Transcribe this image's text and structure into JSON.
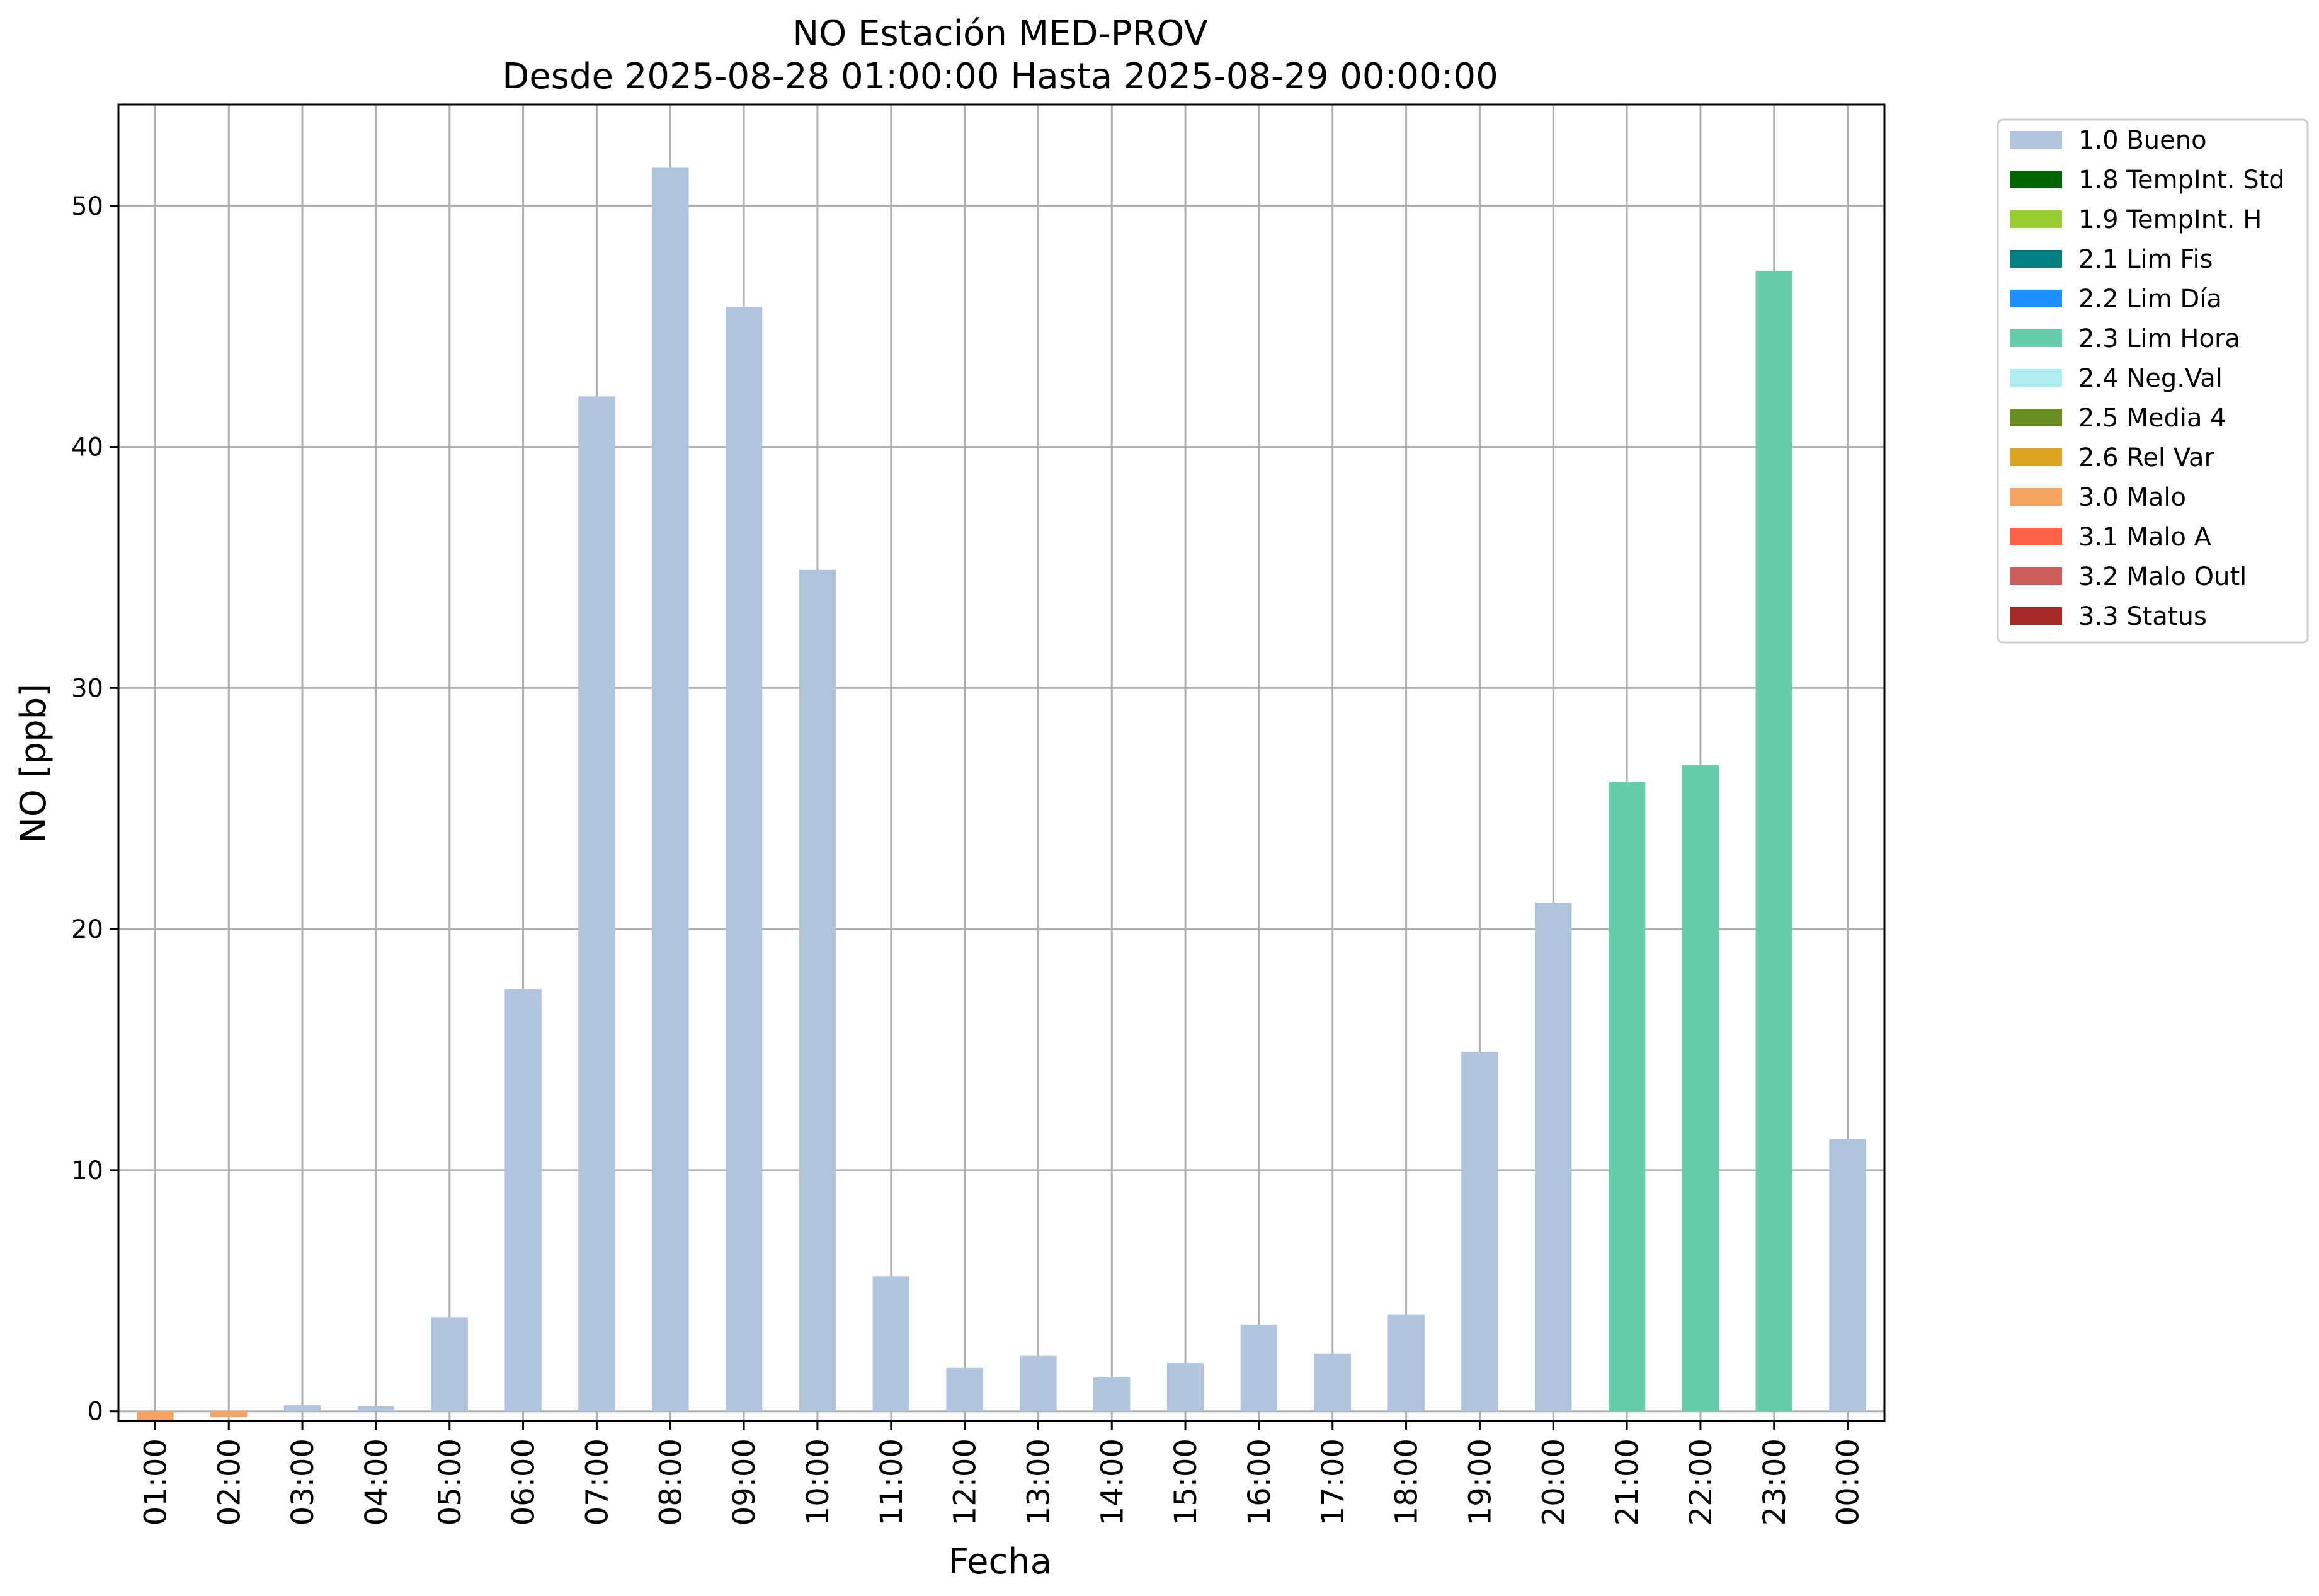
{
  "chart_data": {
    "type": "bar",
    "title": [
      "NO Estación MED-PROV",
      "Desde 2025-08-28 01:00:00 Hasta 2025-08-29 00:00:00"
    ],
    "xlabel": "Fecha",
    "ylabel": "NO [ppb]",
    "ylim": [
      -0.4,
      54.2
    ],
    "yticks": [
      0,
      10,
      20,
      30,
      40,
      50
    ],
    "grid": true,
    "legend_position": "outside-top-right",
    "categories": [
      "01:00",
      "02:00",
      "03:00",
      "04:00",
      "05:00",
      "06:00",
      "07:00",
      "08:00",
      "09:00",
      "10:00",
      "11:00",
      "12:00",
      "13:00",
      "14:00",
      "15:00",
      "16:00",
      "17:00",
      "18:00",
      "19:00",
      "20:00",
      "21:00",
      "22:00",
      "23:00",
      "00:00"
    ],
    "values": [
      -0.4,
      -0.25,
      0.25,
      0.2,
      3.9,
      17.5,
      42.1,
      51.6,
      45.8,
      34.9,
      5.6,
      1.8,
      2.3,
      1.4,
      2.0,
      3.6,
      2.4,
      4.0,
      14.9,
      21.1,
      26.1,
      26.8,
      47.3,
      11.3
    ],
    "flags": [
      "3.0 Malo",
      "3.0 Malo",
      "1.0 Bueno",
      "1.0 Bueno",
      "1.0 Bueno",
      "1.0 Bueno",
      "1.0 Bueno",
      "1.0 Bueno",
      "1.0 Bueno",
      "1.0 Bueno",
      "1.0 Bueno",
      "1.0 Bueno",
      "1.0 Bueno",
      "1.0 Bueno",
      "1.0 Bueno",
      "1.0 Bueno",
      "1.0 Bueno",
      "1.0 Bueno",
      "1.0 Bueno",
      "1.0 Bueno",
      "2.3 Lim Hora",
      "2.3 Lim Hora",
      "2.3 Lim Hora",
      "1.0 Bueno"
    ],
    "legend": [
      {
        "label": "1.0 Bueno",
        "color": "#b0c4de"
      },
      {
        "label": "1.8 TempInt. Std",
        "color": "#006400"
      },
      {
        "label": "1.9 TempInt. H",
        "color": "#9acd32"
      },
      {
        "label": "2.1 Lim Fis",
        "color": "#008080"
      },
      {
        "label": "2.2 Lim Día",
        "color": "#1e90ff"
      },
      {
        "label": "2.3 Lim Hora",
        "color": "#66cdaa"
      },
      {
        "label": "2.4 Neg.Val",
        "color": "#afeeee"
      },
      {
        "label": "2.5 Media 4",
        "color": "#6b8e23"
      },
      {
        "label": "2.6 Rel Var",
        "color": "#daa520"
      },
      {
        "label": "3.0 Malo",
        "color": "#f4a460"
      },
      {
        "label": "3.1 Malo A",
        "color": "#ff6347"
      },
      {
        "label": "3.2 Malo Outl",
        "color": "#cd5c5c"
      },
      {
        "label": "3.3 Status",
        "color": "#a52a2a"
      }
    ]
  }
}
